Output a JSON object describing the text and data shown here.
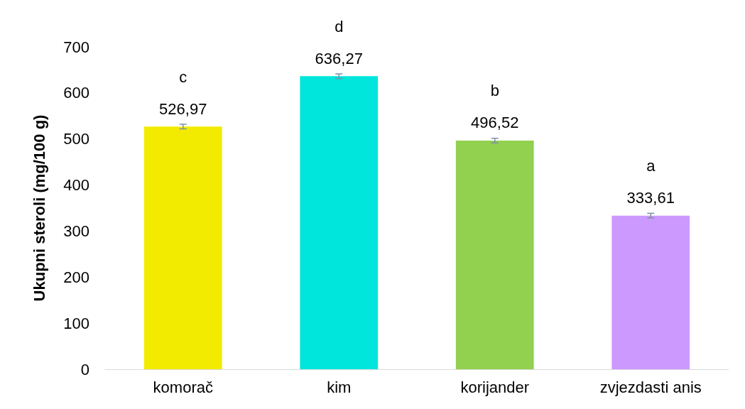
{
  "chart_data": {
    "type": "bar",
    "ylabel": "Ukupni steroli (mg/100 g)",
    "categories": [
      "komorač",
      "kim",
      "korijander",
      "zvjezdasti anis"
    ],
    "values": [
      526.97,
      636.27,
      496.52,
      333.61
    ],
    "colors": [
      "#f2eb00",
      "#00e6dc",
      "#92d050",
      "#cc99ff"
    ],
    "value_labels": [
      "526,97",
      "636,27",
      "496,52",
      "333,61"
    ],
    "errors": [
      5,
      5,
      5,
      5
    ],
    "annotations": [
      {
        "text": "c",
        "x": "komorač",
        "y": 526.97
      },
      {
        "text": "d",
        "x": "kim",
        "y": 636.27
      },
      {
        "text": "b",
        "x": "korijander",
        "y": 496.52
      },
      {
        "text": "a",
        "x": "zvjezdasti anis",
        "y": 333.61
      }
    ],
    "ylim": [
      0,
      700
    ],
    "yticks": [
      0,
      100,
      200,
      300,
      400,
      500,
      600,
      700
    ],
    "grid": false
  }
}
